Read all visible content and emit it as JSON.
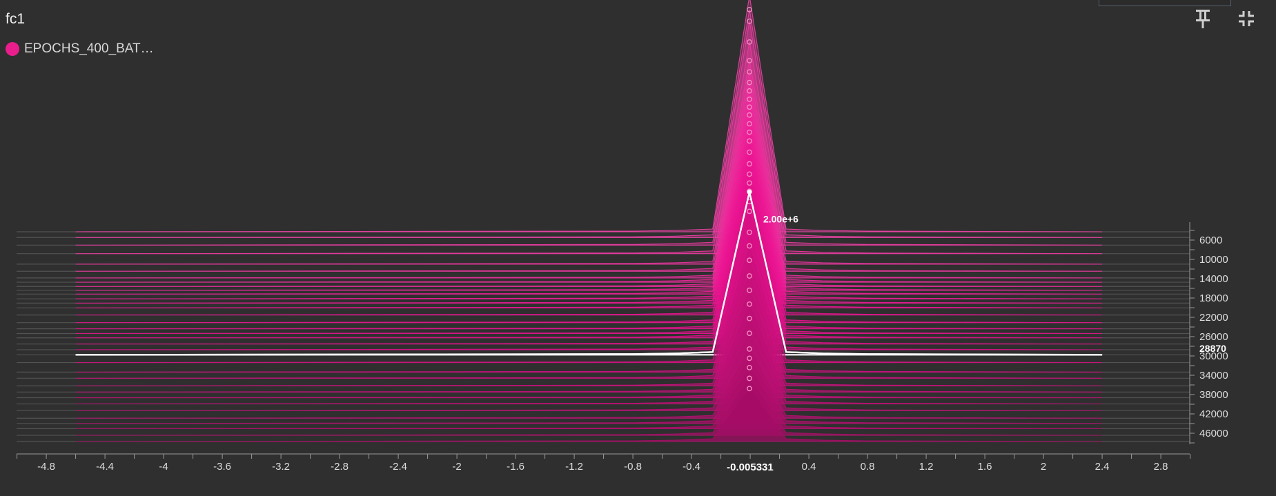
{
  "header": {
    "title": "fc1",
    "pin_icon": "pin-icon",
    "collapse_icon": "collapse-icon"
  },
  "legend": {
    "run_label": "EPOCHS_400_BAT…",
    "color": "#e91e8c"
  },
  "chart_data": {
    "type": "histogram-offset",
    "x_ticks": [
      "-4.8",
      "-4.4",
      "-4",
      "-3.6",
      "-3.2",
      "-2.8",
      "-2.4",
      "-2",
      "-1.6",
      "-1.2",
      "-0.8",
      "-0.4",
      "0.4",
      "0.8",
      "1.2",
      "1.6",
      "2",
      "2.4",
      "2.8"
    ],
    "xlim": [
      -5.0,
      3.0
    ],
    "y_ticks": [
      "6000",
      "10000",
      "14000",
      "18000",
      "22000",
      "26000",
      "30000",
      "34000",
      "38000",
      "42000",
      "46000"
    ],
    "ylim": [
      2000,
      48000
    ],
    "hover": {
      "x_label": "-0.005331",
      "step_label": "28870",
      "step": 28870,
      "peak_label": "2.00e+6",
      "peak_value": 2000000
    },
    "series_color": "#e91e8c",
    "highlight_color": "#ffffff",
    "peak_center": -0.005331,
    "steps": [
      3000,
      4200,
      5800,
      7600,
      9800,
      11300,
      12700,
      13600,
      14500,
      15300,
      16100,
      17100,
      18000,
      19000,
      20500,
      22100,
      23400,
      24400,
      25300,
      26600,
      27800,
      28870,
      30500,
      32500,
      33800,
      35400,
      36700,
      37900,
      39200,
      40600,
      42200,
      43300,
      44400,
      45800,
      47100
    ],
    "peak_counts": [
      2900000,
      2800000,
      2750000,
      2600000,
      2500000,
      2450000,
      2400000,
      2350000,
      2300000,
      2250000,
      2200000,
      2150000,
      2100000,
      2050000,
      2000000,
      1950000,
      1900000,
      1850000,
      1800000,
      1750000,
      1700000,
      2000000,
      1600000,
      1550000,
      1450000,
      1350000,
      1250000,
      1150000,
      1050000,
      950000,
      850000,
      800000,
      750000,
      700000,
      650000
    ],
    "base_width": 0.25,
    "shoulder_width": 0.5
  },
  "colors": {
    "background": "#2f2f2f",
    "axis": "#9a9a9a",
    "text": "#e8e8e8"
  }
}
